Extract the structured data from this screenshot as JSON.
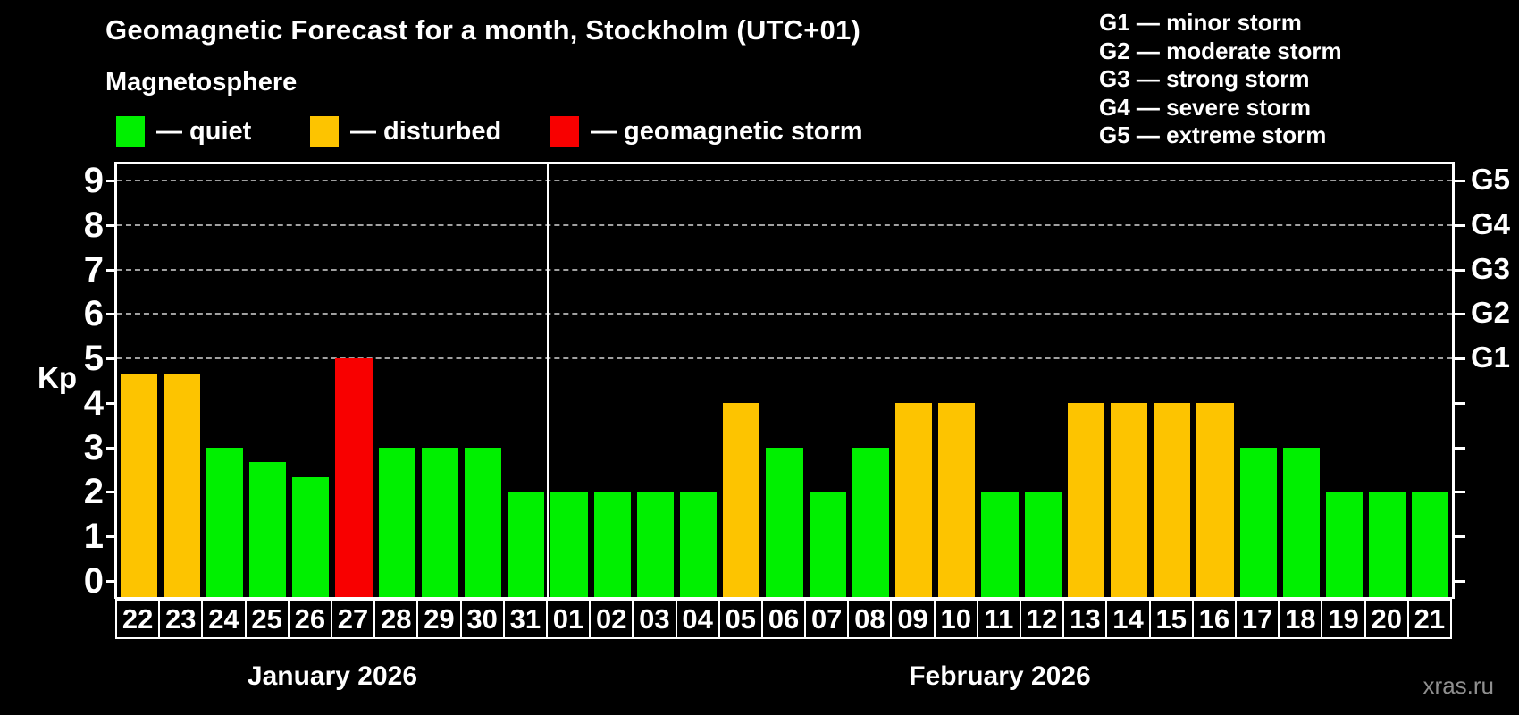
{
  "title": "Geomagnetic Forecast for a month, Stockholm (UTC+01)",
  "subtitle": "Magnetosphere",
  "legend": {
    "quiet_label": "— quiet",
    "disturbed_label": "— disturbed",
    "storm_label": "— geomagnetic storm"
  },
  "storm_scale": [
    "G1 — minor storm",
    "G2 — moderate storm",
    "G3 — strong storm",
    "G4 — severe storm",
    "G5 — extreme storm"
  ],
  "colors": {
    "quiet": "#00f000",
    "disturbed": "#fdc400",
    "storm": "#f80000",
    "gridline": "#a0a0a0",
    "frame": "#ffffff"
  },
  "watermark": "xras.ru",
  "chart_data": {
    "type": "bar",
    "title": "Geomagnetic Forecast for a month, Stockholm (UTC+01)",
    "xlabel": "",
    "ylabel": "Kp",
    "ylim": [
      0,
      9
    ],
    "grid": "dashed horizontal at Kp 5-9",
    "gridlines_at": [
      5,
      6,
      7,
      8,
      9
    ],
    "right_axis_labels": [
      "G1",
      "G2",
      "G3",
      "G4",
      "G5"
    ],
    "right_axis_kp_of_g1": 5,
    "months": [
      {
        "label": "January 2026",
        "days": 10
      },
      {
        "label": "February 2026",
        "days": 21
      }
    ],
    "categories": [
      "22",
      "23",
      "24",
      "25",
      "26",
      "27",
      "28",
      "29",
      "30",
      "31",
      "01",
      "02",
      "03",
      "04",
      "05",
      "06",
      "07",
      "08",
      "09",
      "10",
      "11",
      "12",
      "13",
      "14",
      "15",
      "16",
      "17",
      "18",
      "19",
      "20",
      "21"
    ],
    "values": [
      4.67,
      4.67,
      3,
      2.67,
      2.33,
      5,
      3,
      3,
      3,
      2,
      2,
      2,
      2,
      2,
      4,
      3,
      2,
      3,
      4,
      4,
      2,
      2,
      4,
      4,
      4,
      4,
      3,
      3,
      2,
      2,
      2
    ],
    "statuses": [
      "disturbed",
      "disturbed",
      "quiet",
      "quiet",
      "quiet",
      "storm",
      "quiet",
      "quiet",
      "quiet",
      "quiet",
      "quiet",
      "quiet",
      "quiet",
      "quiet",
      "disturbed",
      "quiet",
      "quiet",
      "quiet",
      "disturbed",
      "disturbed",
      "quiet",
      "quiet",
      "disturbed",
      "disturbed",
      "disturbed",
      "disturbed",
      "quiet",
      "quiet",
      "quiet",
      "quiet",
      "quiet"
    ]
  }
}
